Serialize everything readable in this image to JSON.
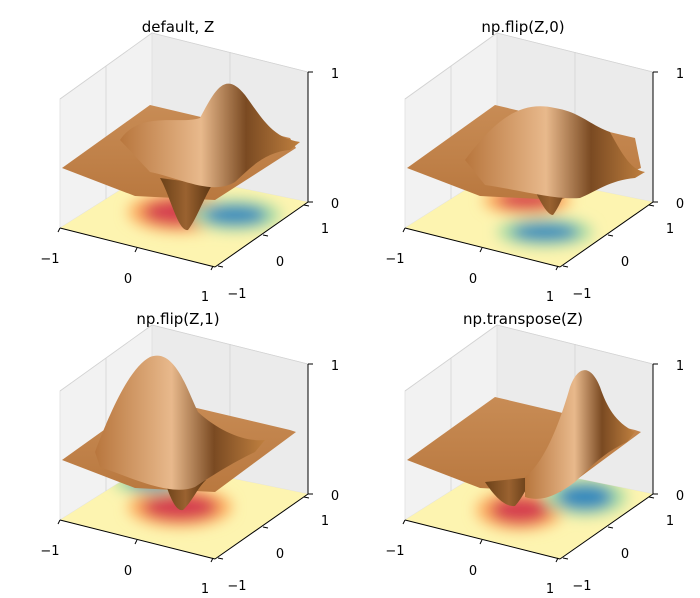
{
  "figure": {
    "layout": "2x2 grid of 3D surface plots with filled contour projection on the floor"
  },
  "chart_data": [
    {
      "type": "surface3d",
      "title": "default, Z",
      "surface_color": "#c68a52",
      "floor_colormap": "Spectral",
      "xlim": [
        -1,
        1
      ],
      "ylim": [
        -1,
        1
      ],
      "zlim": [
        0,
        1
      ],
      "x_ticks": [
        "−1",
        "0",
        "1"
      ],
      "y_ticks": [
        "−1",
        "0",
        "1"
      ],
      "z_ticks": [
        "0",
        "1"
      ],
      "features": [
        {
          "kind": "peak",
          "x": 0.2,
          "y": 0.6
        },
        {
          "kind": "dip",
          "x": 0.2,
          "y": -0.3
        }
      ]
    },
    {
      "type": "surface3d",
      "title": "np.flip(Z,0)",
      "surface_color": "#c68a52",
      "floor_colormap": "Spectral",
      "xlim": [
        -1,
        1
      ],
      "ylim": [
        -1,
        1
      ],
      "zlim": [
        0,
        1
      ],
      "x_ticks": [
        "−1",
        "0",
        "1"
      ],
      "y_ticks": [
        "−1",
        "0",
        "1"
      ],
      "z_ticks": [
        "0",
        "1"
      ],
      "features": [
        {
          "kind": "peak",
          "x": 0.3,
          "y": 0.3
        },
        {
          "kind": "dip",
          "x": 0.3,
          "y": -0.2
        }
      ]
    },
    {
      "type": "surface3d",
      "title": "np.flip(Z,1)",
      "surface_color": "#c68a52",
      "floor_colormap": "Spectral",
      "xlim": [
        -1,
        1
      ],
      "ylim": [
        -1,
        1
      ],
      "zlim": [
        0,
        1
      ],
      "x_ticks": [
        "−1",
        "0",
        "1"
      ],
      "y_ticks": [
        "−1",
        "0",
        "1"
      ],
      "z_ticks": [
        "0",
        "1"
      ],
      "features": [
        {
          "kind": "peak",
          "x": -0.1,
          "y": 0.5
        },
        {
          "kind": "dip",
          "x": 0.25,
          "y": -0.3
        }
      ]
    },
    {
      "type": "surface3d",
      "title": "np.transpose(Z)",
      "surface_color": "#c68a52",
      "floor_colormap": "Spectral",
      "xlim": [
        -1,
        1
      ],
      "ylim": [
        -1,
        1
      ],
      "zlim": [
        0,
        1
      ],
      "x_ticks": [
        "−1",
        "0",
        "1"
      ],
      "y_ticks": [
        "−1",
        "0",
        "1"
      ],
      "z_ticks": [
        "0",
        "1"
      ],
      "features": [
        {
          "kind": "peak",
          "x": 0.6,
          "y": 0.2
        },
        {
          "kind": "dip",
          "x": 0.1,
          "y": -0.3
        }
      ]
    }
  ]
}
